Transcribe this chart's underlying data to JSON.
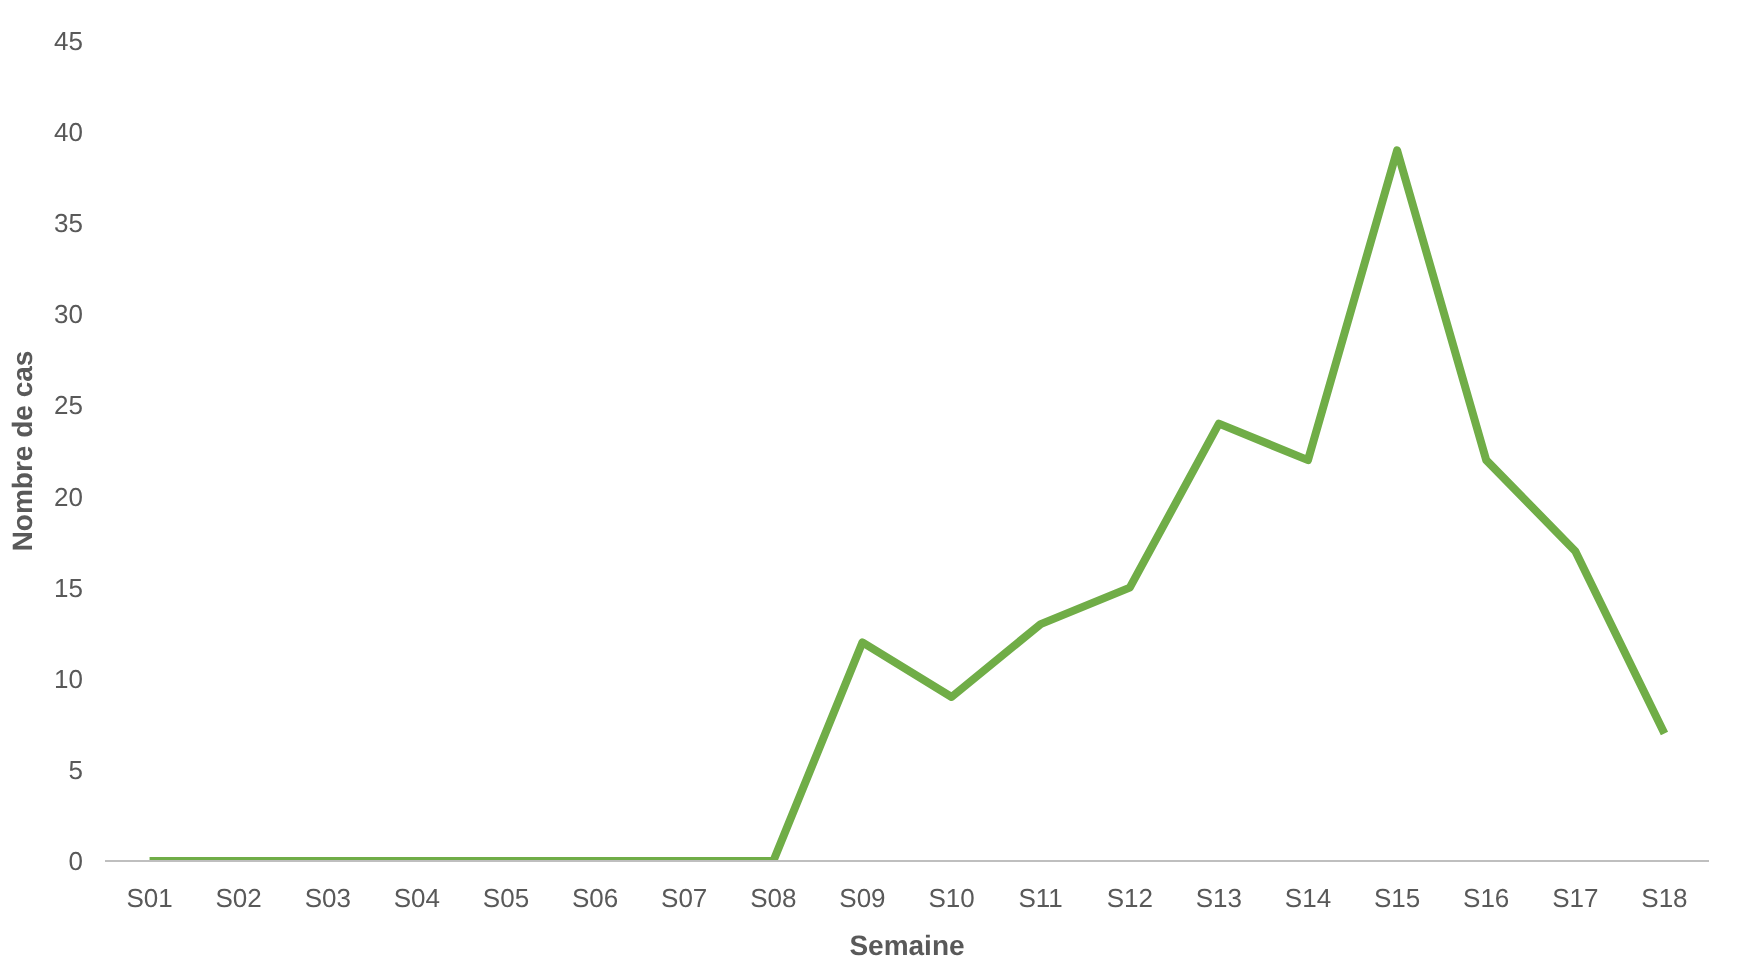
{
  "chart_data": {
    "type": "line",
    "xlabel": "Semaine",
    "ylabel": "Nombre de cas",
    "categories": [
      "S01",
      "S02",
      "S03",
      "S04",
      "S05",
      "S06",
      "S07",
      "S08",
      "S09",
      "S10",
      "S11",
      "S12",
      "S13",
      "S14",
      "S15",
      "S16",
      "S17",
      "S18"
    ],
    "series": [
      {
        "color": "#70ad47",
        "values": [
          0,
          0,
          0,
          0,
          0,
          0,
          0,
          0,
          12,
          9,
          13,
          15,
          24,
          22,
          39,
          22,
          17,
          7
        ]
      }
    ],
    "ylim": [
      0,
      45
    ],
    "yticks": [
      0,
      5,
      10,
      15,
      20,
      25,
      30,
      35,
      40,
      45
    ],
    "grid": false,
    "marker": "none",
    "line_style": "solid"
  }
}
